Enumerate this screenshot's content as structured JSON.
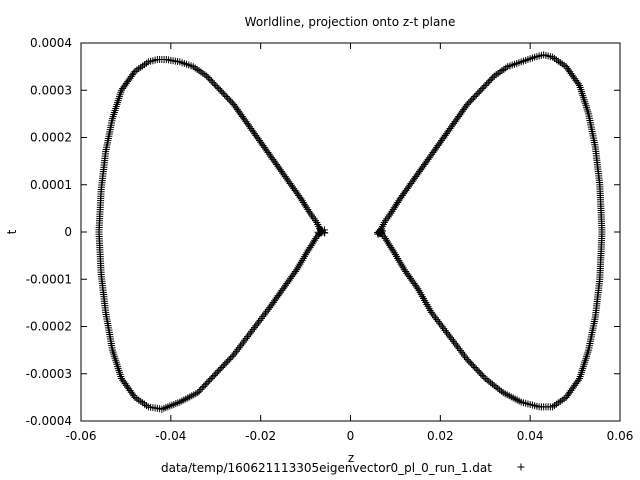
{
  "chart_data": {
    "type": "scatter",
    "title": "Worldline, projection onto z-t plane",
    "xlabel": "z",
    "ylabel": "t",
    "xlim": [
      -0.06,
      0.06
    ],
    "ylim": [
      -0.0004,
      0.0004
    ],
    "xticks": [
      -0.06,
      -0.04,
      -0.02,
      0,
      0.02,
      0.04,
      0.06
    ],
    "xtick_labels": [
      "-0.06",
      "-0.04",
      "-0.02",
      "0",
      "0.02",
      "0.04",
      "0.06"
    ],
    "yticks": [
      -0.0004,
      -0.0003,
      -0.0002,
      -0.0001,
      0,
      0.0001,
      0.0002,
      0.0003,
      0.0004
    ],
    "ytick_labels": [
      "-0.0004",
      "-0.0003",
      "-0.0002",
      "-0.0001",
      "0",
      "0.0001",
      "0.0002",
      "0.0003",
      "0.0004"
    ],
    "grid": false,
    "legend_position": "bottom-center",
    "marker": "+",
    "color": "#000000",
    "series": [
      {
        "name": "data/temp/160621113305eigenvector0_pl_0_run_1.dat",
        "points": [
          [
            0.0065,
            0.0
          ],
          [
            0.0075,
            2e-05
          ],
          [
            0.009,
            4e-05
          ],
          [
            0.011,
            7e-05
          ],
          [
            0.014,
            0.00011
          ],
          [
            0.017,
            0.00015
          ],
          [
            0.02,
            0.00019
          ],
          [
            0.023,
            0.00023
          ],
          [
            0.026,
            0.00027
          ],
          [
            0.029,
            0.0003
          ],
          [
            0.032,
            0.00033
          ],
          [
            0.035,
            0.00035
          ],
          [
            0.038,
            0.00036
          ],
          [
            0.041,
            0.00037
          ],
          [
            0.043,
            0.000375
          ],
          [
            0.045,
            0.00037
          ],
          [
            0.048,
            0.00035
          ],
          [
            0.051,
            0.00031
          ],
          [
            0.053,
            0.00025
          ],
          [
            0.0545,
            0.00018
          ],
          [
            0.0555,
            0.0001
          ],
          [
            0.056,
            0.0
          ],
          [
            0.0555,
            -0.0001
          ],
          [
            0.0545,
            -0.00018
          ],
          [
            0.053,
            -0.00025
          ],
          [
            0.051,
            -0.00031
          ],
          [
            0.048,
            -0.00035
          ],
          [
            0.045,
            -0.00037
          ],
          [
            0.042,
            -0.00037
          ],
          [
            0.038,
            -0.00036
          ],
          [
            0.034,
            -0.00034
          ],
          [
            0.03,
            -0.00031
          ],
          [
            0.026,
            -0.00027
          ],
          [
            0.022,
            -0.00022
          ],
          [
            0.018,
            -0.00017
          ],
          [
            0.015,
            -0.00012
          ],
          [
            0.012,
            -8e-05
          ],
          [
            0.0095,
            -4e-05
          ],
          [
            0.0075,
            -1e-05
          ],
          [
            0.0065,
            0.0
          ],
          [
            -0.0065,
            0.0
          ],
          [
            -0.0075,
            2e-05
          ],
          [
            -0.009,
            4e-05
          ],
          [
            -0.011,
            7e-05
          ],
          [
            -0.014,
            0.00011
          ],
          [
            -0.017,
            0.00015
          ],
          [
            -0.02,
            0.00019
          ],
          [
            -0.023,
            0.00023
          ],
          [
            -0.026,
            0.00027
          ],
          [
            -0.029,
            0.0003
          ],
          [
            -0.032,
            0.00033
          ],
          [
            -0.035,
            0.00035
          ],
          [
            -0.038,
            0.00036
          ],
          [
            -0.041,
            0.000365
          ],
          [
            -0.043,
            0.000365
          ],
          [
            -0.045,
            0.00036
          ],
          [
            -0.048,
            0.00034
          ],
          [
            -0.051,
            0.0003
          ],
          [
            -0.053,
            0.00024
          ],
          [
            -0.0545,
            0.00017
          ],
          [
            -0.0555,
            9e-05
          ],
          [
            -0.056,
            0.0
          ],
          [
            -0.0555,
            -9e-05
          ],
          [
            -0.0545,
            -0.00017
          ],
          [
            -0.053,
            -0.00025
          ],
          [
            -0.051,
            -0.00031
          ],
          [
            -0.048,
            -0.00035
          ],
          [
            -0.045,
            -0.00037
          ],
          [
            -0.042,
            -0.000375
          ],
          [
            -0.038,
            -0.00036
          ],
          [
            -0.034,
            -0.00034
          ],
          [
            -0.03,
            -0.0003
          ],
          [
            -0.026,
            -0.00026
          ],
          [
            -0.022,
            -0.00021
          ],
          [
            -0.018,
            -0.00016
          ],
          [
            -0.015,
            -0.00012
          ],
          [
            -0.012,
            -8e-05
          ],
          [
            -0.0095,
            -4e-05
          ],
          [
            -0.0075,
            -1e-05
          ],
          [
            -0.0065,
            0.0
          ]
        ]
      }
    ]
  }
}
